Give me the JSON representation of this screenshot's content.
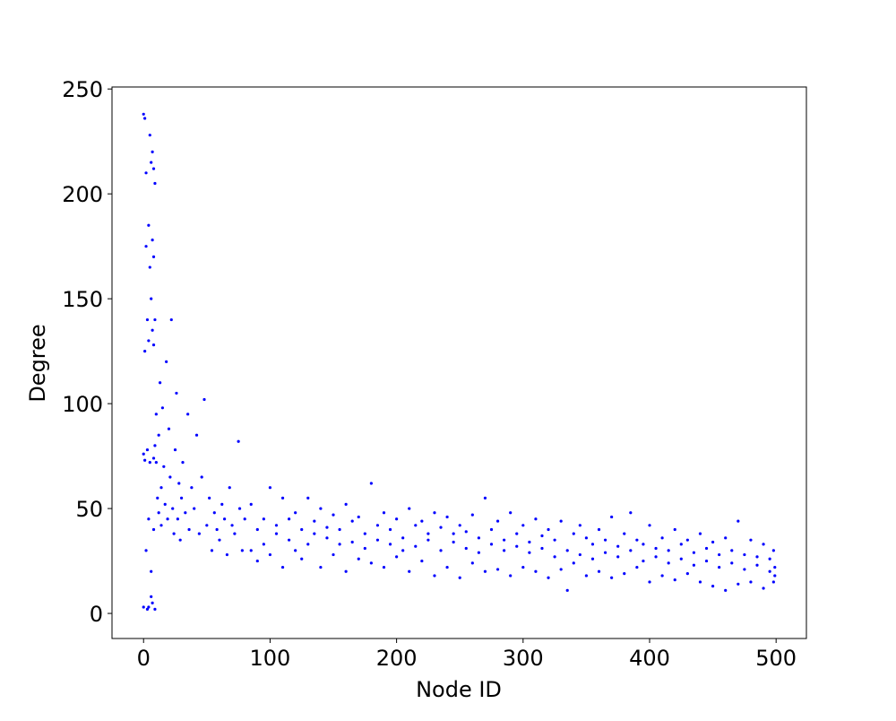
{
  "chart_data": {
    "type": "scatter",
    "x_label": "Node ID",
    "y_label": "Degree",
    "series": [
      {
        "color": "#0000ff",
        "x": [
          0,
          1,
          0,
          1,
          0,
          2,
          2,
          3,
          3,
          3,
          4,
          4,
          4,
          5,
          5,
          5,
          6,
          6,
          6,
          7,
          7,
          7,
          7,
          8,
          8,
          8,
          8,
          9,
          9,
          9,
          9,
          10,
          10,
          1,
          2,
          6,
          8,
          4,
          11,
          12,
          12,
          13,
          14,
          14,
          15,
          16,
          17,
          18,
          19,
          20,
          21,
          22,
          23,
          24,
          25,
          26,
          27,
          28,
          29,
          30,
          31,
          33,
          35,
          36,
          38,
          40,
          42,
          44,
          46,
          48,
          50,
          52,
          54,
          56,
          58,
          60,
          62,
          64,
          66,
          68,
          70,
          72,
          75,
          76,
          78,
          80,
          85,
          85,
          90,
          90,
          95,
          95,
          100,
          100,
          105,
          105,
          110,
          110,
          115,
          115,
          120,
          120,
          125,
          125,
          130,
          130,
          135,
          135,
          140,
          140,
          145,
          145,
          150,
          150,
          155,
          155,
          160,
          160,
          165,
          165,
          170,
          170,
          175,
          175,
          180,
          180,
          185,
          185,
          190,
          190,
          195,
          195,
          200,
          200,
          205,
          205,
          210,
          210,
          215,
          215,
          220,
          220,
          225,
          225,
          230,
          230,
          235,
          235,
          240,
          240,
          245,
          245,
          250,
          250,
          255,
          255,
          260,
          260,
          265,
          265,
          270,
          270,
          275,
          275,
          280,
          280,
          285,
          285,
          290,
          290,
          295,
          295,
          300,
          300,
          305,
          305,
          310,
          310,
          315,
          315,
          320,
          320,
          325,
          325,
          330,
          330,
          335,
          335,
          340,
          340,
          345,
          345,
          350,
          350,
          355,
          355,
          360,
          360,
          365,
          365,
          370,
          370,
          375,
          375,
          380,
          380,
          385,
          385,
          390,
          390,
          395,
          395,
          400,
          400,
          405,
          405,
          410,
          410,
          415,
          415,
          420,
          420,
          425,
          425,
          430,
          430,
          435,
          435,
          440,
          440,
          445,
          445,
          450,
          450,
          455,
          455,
          460,
          460,
          465,
          465,
          470,
          470,
          475,
          475,
          480,
          480,
          485,
          485,
          490,
          490,
          495,
          495,
          498,
          498,
          499,
          499
        ],
        "values": [
          238,
          236,
          76,
          73,
          3,
          210,
          175,
          140,
          78,
          2,
          185,
          130,
          45,
          228,
          165,
          72,
          215,
          150,
          20,
          220,
          178,
          135,
          5,
          212,
          170,
          128,
          74,
          205,
          140,
          80,
          2,
          72,
          95,
          125,
          30,
          8,
          40,
          3,
          55,
          48,
          85,
          110,
          60,
          42,
          98,
          70,
          52,
          120,
          45,
          88,
          65,
          140,
          50,
          38,
          78,
          105,
          45,
          62,
          35,
          55,
          72,
          48,
          95,
          40,
          60,
          50,
          85,
          38,
          65,
          102,
          42,
          55,
          30,
          48,
          40,
          35,
          52,
          45,
          28,
          60,
          42,
          38,
          82,
          50,
          30,
          45,
          52,
          30,
          40,
          25,
          45,
          33,
          60,
          28,
          38,
          42,
          55,
          22,
          35,
          45,
          48,
          30,
          40,
          26,
          55,
          33,
          38,
          44,
          50,
          22,
          36,
          41,
          47,
          28,
          40,
          33,
          52,
          20,
          34,
          44,
          46,
          26,
          38,
          31,
          62,
          24,
          35,
          42,
          48,
          22,
          33,
          40,
          45,
          27,
          36,
          30,
          50,
          20,
          32,
          42,
          44,
          25,
          35,
          38,
          48,
          18,
          30,
          41,
          46,
          22,
          34,
          38,
          42,
          17,
          31,
          39,
          47,
          24,
          29,
          36,
          55,
          20,
          33,
          40,
          44,
          21,
          30,
          35,
          48,
          18,
          32,
          38,
          42,
          22,
          29,
          34,
          45,
          20,
          31,
          37,
          40,
          17,
          27,
          35,
          44,
          21,
          30,
          11,
          38,
          24,
          28,
          42,
          36,
          18,
          26,
          33,
          40,
          20,
          29,
          35,
          46,
          17,
          27,
          32,
          38,
          19,
          30,
          48,
          35,
          22,
          25,
          33,
          42,
          15,
          27,
          31,
          36,
          18,
          24,
          30,
          40,
          16,
          26,
          33,
          35,
          19,
          23,
          29,
          38,
          15,
          25,
          31,
          34,
          13,
          22,
          28,
          36,
          11,
          24,
          30,
          44,
          14,
          21,
          28,
          35,
          15,
          23,
          27,
          33,
          12,
          20,
          26,
          30,
          15,
          22,
          18
        ]
      }
    ],
    "xlim": [
      -24.95,
      523.95
    ],
    "ylim": [
      -11.95,
      250.95
    ],
    "xticks": [
      0,
      100,
      200,
      300,
      400,
      500
    ],
    "yticks": [
      0,
      50,
      100,
      150,
      200,
      250
    ]
  }
}
